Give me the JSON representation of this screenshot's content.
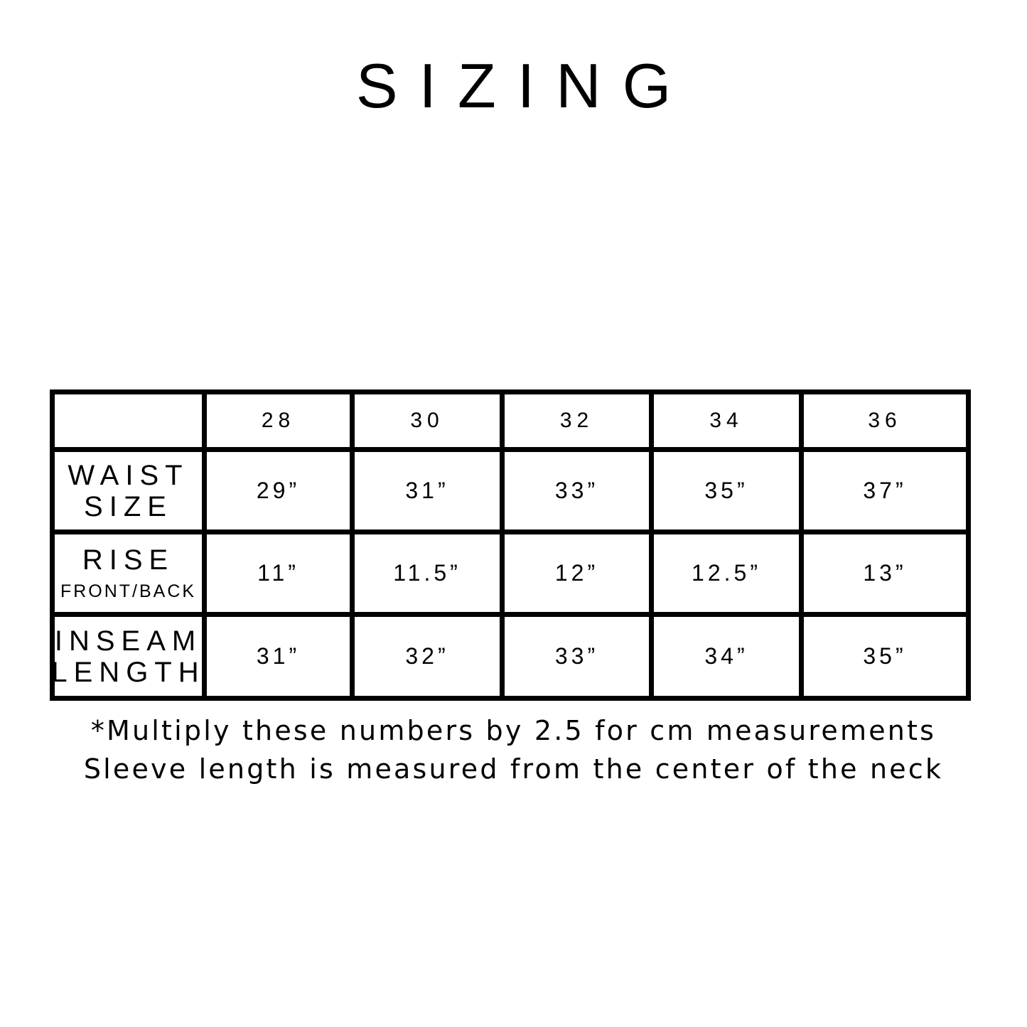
{
  "title": "SIZING",
  "table": {
    "header": [
      "",
      "28",
      "30",
      "32",
      "34",
      "36"
    ],
    "rows": [
      {
        "label": "WAIST",
        "label2": "SIZE",
        "values": [
          "29”",
          "31”",
          "33”",
          "35”",
          "37”"
        ]
      },
      {
        "label": "RISE",
        "sublabel": "FRONT/BACK",
        "values": [
          "11”",
          "11.5”",
          "12”",
          "12.5”",
          "13”"
        ]
      },
      {
        "label": "INSEAM",
        "label2": "LENGTH",
        "values": [
          "31”",
          "32”",
          "33”",
          "34”",
          "35”"
        ]
      }
    ]
  },
  "notes": [
    "*Multiply these numbers by 2.5 for cm measurements",
    "Sleeve length is measured from the center of the neck"
  ]
}
